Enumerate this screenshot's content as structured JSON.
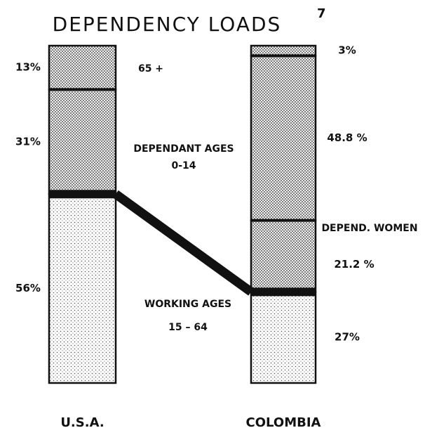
{
  "chart_data": {
    "type": "stacked_bar",
    "title": "DEPENDENCY LOADS",
    "title_note": "7",
    "categories": [
      "U.S.A.",
      "COLOMBIA"
    ],
    "series": [
      {
        "name": "WORKING AGES",
        "sublabel": "15 – 64",
        "fill": "sparse",
        "values": [
          56,
          27
        ],
        "value_labels": [
          "56%",
          "27%"
        ]
      },
      {
        "name": "DEPEND. WOMEN",
        "fill": "dense",
        "values": [
          null,
          21.2
        ],
        "value_labels": [
          null,
          "21.2 %"
        ]
      },
      {
        "name": "DEPENDANT AGES",
        "sublabel": "0-14",
        "fill": "dense",
        "values": [
          31,
          48.8
        ],
        "value_labels": [
          "31%",
          "48.8 %"
        ]
      },
      {
        "name": "65 +",
        "fill": "dense",
        "values": [
          13,
          3
        ],
        "value_labels": [
          "13%",
          "3%"
        ]
      }
    ]
  }
}
